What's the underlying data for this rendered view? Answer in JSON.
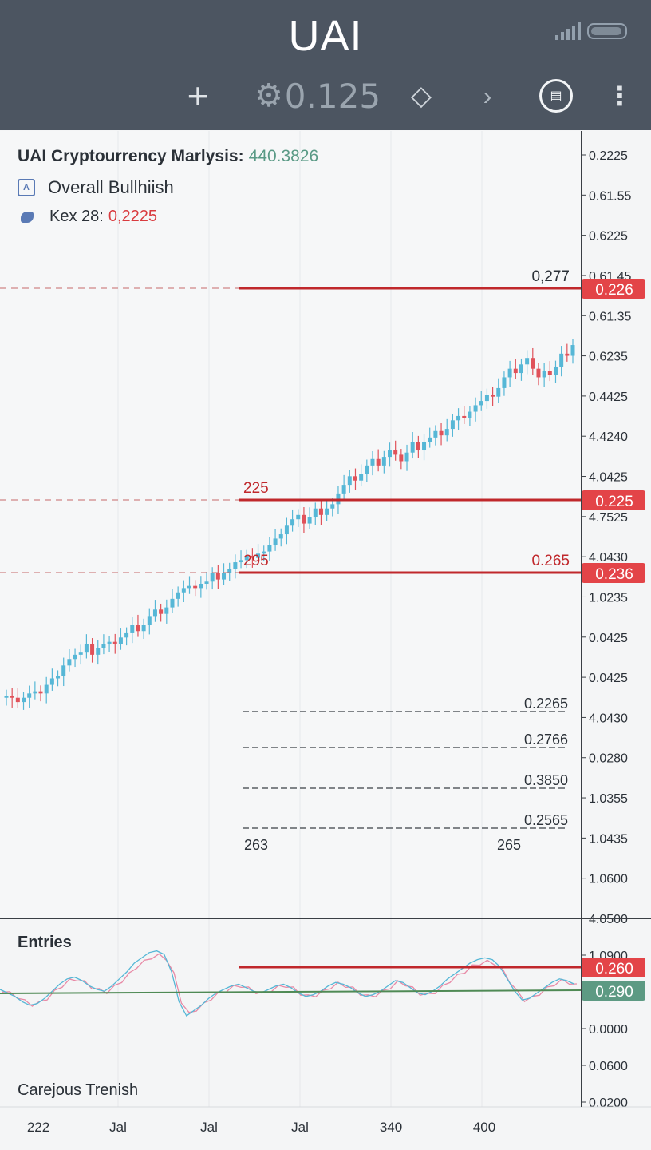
{
  "app": {
    "title": "UAI",
    "toolbar": {
      "price": "0.125"
    }
  },
  "info": {
    "heading": "UAI Cryptourrency Marlysis:",
    "heading_value": "440.3826",
    "sentiment": "Overall Bullhiish",
    "key_label": "Kex 28:",
    "key_value": "0,2225"
  },
  "colors": {
    "up": "#56b7d6",
    "down": "#e0525a",
    "level": "#c0282c",
    "signal": "#4f8a55",
    "badge_red": "#e34448",
    "badge_green": "#5d9a83"
  },
  "chart_data": {
    "type": "candlestick",
    "price_axis_ticks": [
      "0.2225",
      "0.61.55",
      "0.6225",
      "0.61.45",
      "0.61.35",
      "0.6235",
      "0.4425",
      "4.4240",
      "4.0425",
      "4.7525",
      "4.0430",
      "1.0235",
      "0.0425",
      "0.0425",
      "4.0430",
      "0.0280",
      "1.0355",
      "1.0435",
      "1.0600",
      "4.0500"
    ],
    "x_axis_ticks": [
      "222",
      "Jal",
      "Jal",
      "Jal",
      "340",
      "400"
    ],
    "levels": [
      {
        "badge": "0.226",
        "label_left": "",
        "label_right": "0,277"
      },
      {
        "badge": "0.225",
        "label_left": "225",
        "label_right": ""
      },
      {
        "badge": "0.236",
        "label_left": "295",
        "label_right": "0.265"
      }
    ],
    "fib_levels": [
      "0.2265",
      "0.2766",
      "0.3850",
      "0.2565"
    ],
    "fib_bottom_labels": [
      "263",
      "265"
    ],
    "candles_start_price": 72,
    "candles": [
      {
        "c": 1
      },
      {
        "c": -1
      },
      {
        "c": -2
      },
      {
        "c": 2
      },
      {
        "c": 2
      },
      {
        "c": 1
      },
      {
        "c": -1
      },
      {
        "c": 4
      },
      {
        "c": 3
      },
      {
        "c": 1
      },
      {
        "c": 5
      },
      {
        "c": 3
      },
      {
        "c": 2
      },
      {
        "c": 1
      },
      {
        "c": 4
      },
      {
        "c": -5
      },
      {
        "c": 3
      },
      {
        "c": 2
      },
      {
        "c": 1
      },
      {
        "c": -1
      },
      {
        "c": 3
      },
      {
        "c": 2
      },
      {
        "c": 4
      },
      {
        "c": -3
      },
      {
        "c": 3
      },
      {
        "c": 4
      },
      {
        "c": 3
      },
      {
        "c": -2
      },
      {
        "c": 3
      },
      {
        "c": 4
      },
      {
        "c": 3
      },
      {
        "c": 2
      },
      {
        "c": 1
      },
      {
        "c": -1
      },
      {
        "c": 2
      },
      {
        "c": 1
      },
      {
        "c": 4
      },
      {
        "c": -3
      },
      {
        "c": 3
      },
      {
        "c": 2
      },
      {
        "c": 3
      },
      {
        "c": 1
      },
      {
        "c": 2
      },
      {
        "c": -1
      },
      {
        "c": 2
      },
      {
        "c": 1
      },
      {
        "c": 3
      },
      {
        "c": 3
      },
      {
        "c": 2
      },
      {
        "c": 4
      },
      {
        "c": 3
      },
      {
        "c": 2
      },
      {
        "c": -4
      },
      {
        "c": 3
      },
      {
        "c": 4
      },
      {
        "c": -3
      },
      {
        "c": 3
      },
      {
        "c": 2
      },
      {
        "c": 5
      },
      {
        "c": 4
      },
      {
        "c": 4
      },
      {
        "c": -2
      },
      {
        "c": 3
      },
      {
        "c": 4
      },
      {
        "c": 3
      },
      {
        "c": -3
      },
      {
        "c": 4
      },
      {
        "c": 3
      },
      {
        "c": -2
      },
      {
        "c": -3
      },
      {
        "c": 4
      },
      {
        "c": 5
      },
      {
        "c": -4
      },
      {
        "c": 4
      },
      {
        "c": 2
      },
      {
        "c": 3
      },
      {
        "c": -2
      },
      {
        "c": 3
      },
      {
        "c": 4
      },
      {
        "c": 2
      },
      {
        "c": -1
      },
      {
        "c": 3
      },
      {
        "c": 3
      },
      {
        "c": 2
      },
      {
        "c": 3
      },
      {
        "c": -1
      },
      {
        "c": 4
      },
      {
        "c": 5
      },
      {
        "c": 4
      },
      {
        "c": -2
      },
      {
        "c": 4
      },
      {
        "c": 3
      },
      {
        "c": -5
      },
      {
        "c": -4
      },
      {
        "c": 3
      },
      {
        "c": -2
      },
      {
        "c": 4
      },
      {
        "c": 6
      },
      {
        "c": -1
      },
      {
        "c": 5
      }
    ],
    "oscillator": {
      "title": "Entries",
      "footer": "Carejous Trenish",
      "axis_ticks": [
        "1.0900",
        "0.0000",
        "0.0600",
        "0.0200"
      ],
      "level_badge": "0.260",
      "signal_badge": "0.290",
      "series_a": [
        10,
        6,
        2,
        -4,
        -8,
        -6,
        0,
        8,
        16,
        22,
        24,
        20,
        14,
        10,
        8,
        14,
        22,
        30,
        40,
        46,
        52,
        54,
        50,
        30,
        -4,
        -20,
        -14,
        -8,
        0,
        6,
        10,
        14,
        16,
        12,
        8,
        6,
        10,
        14,
        16,
        12,
        6,
        2,
        4,
        8,
        14,
        18,
        16,
        12,
        6,
        2,
        4,
        8,
        14,
        20,
        18,
        12,
        6,
        4,
        8,
        14,
        22,
        28,
        34,
        40,
        44,
        46,
        44,
        36,
        22,
        8,
        -2,
        0,
        6,
        12,
        18,
        22,
        20,
        16
      ]
    }
  }
}
